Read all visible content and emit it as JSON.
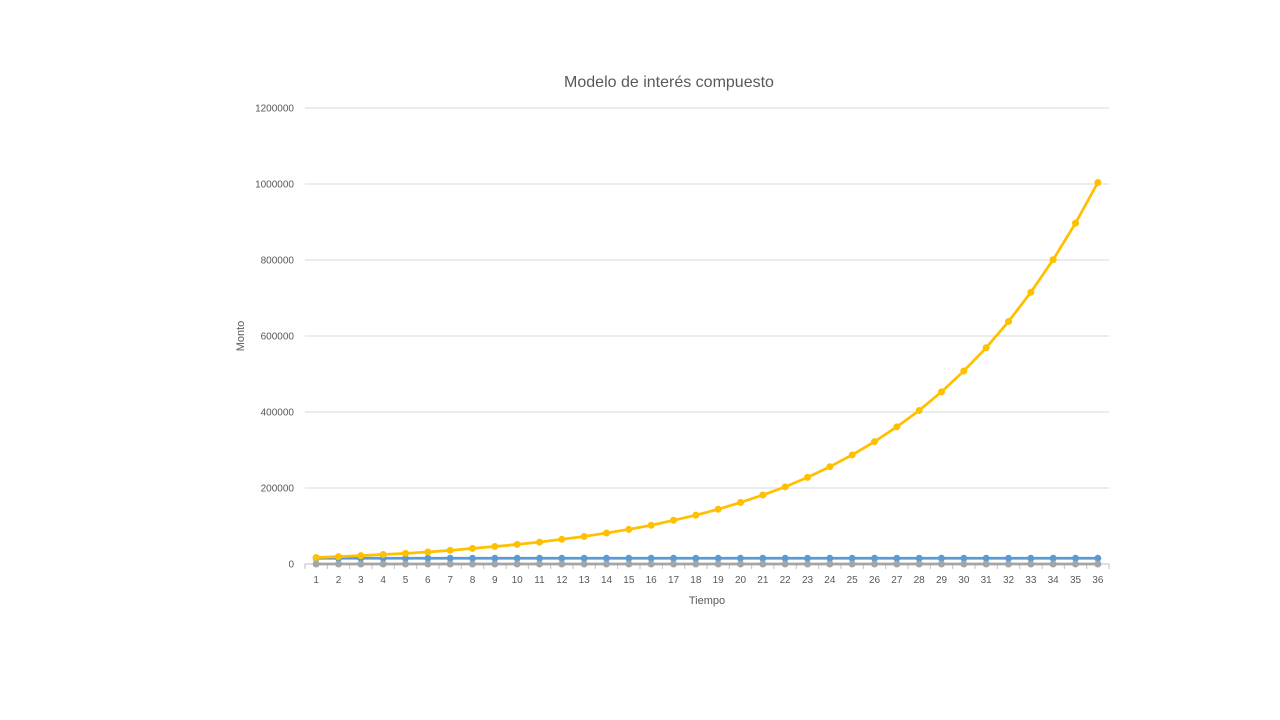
{
  "chart_data": {
    "type": "line",
    "title": "Modelo de interés compuesto",
    "xlabel": "Tiempo",
    "ylabel": "Monto",
    "ylim": [
      0,
      1200000
    ],
    "yticks": [
      0,
      200000,
      400000,
      600000,
      800000,
      1000000,
      1200000
    ],
    "ytick_labels": [
      "0",
      "200000",
      "400000",
      "600000",
      "800000",
      "1000000",
      "1200000"
    ],
    "grid": true,
    "legend": "none",
    "x": [
      "1",
      "2",
      "3",
      "4",
      "5",
      "6",
      "7",
      "8",
      "9",
      "10",
      "11",
      "12",
      "13",
      "14",
      "15",
      "16",
      "17",
      "18",
      "19",
      "20",
      "21",
      "22",
      "23",
      "24",
      "25",
      "26",
      "27",
      "28",
      "29",
      "30",
      "31",
      "32",
      "33",
      "34",
      "35",
      "36"
    ],
    "series": [
      {
        "color": "#5B9BD5",
        "values": [
          15000,
          15000,
          15000,
          15000,
          15000,
          15000,
          15000,
          15000,
          15000,
          15000,
          15000,
          15000,
          15000,
          15000,
          15000,
          15000,
          15000,
          15000,
          15000,
          15000,
          15000,
          15000,
          15000,
          15000,
          15000,
          15000,
          15000,
          15000,
          15000,
          15000,
          15000,
          15000,
          15000,
          15000,
          15000,
          15000
        ]
      },
      {
        "color": "#A5A5A5",
        "values": [
          0,
          0,
          0,
          0,
          0,
          0,
          0,
          0,
          0,
          0,
          0,
          0,
          0,
          0,
          0,
          0,
          0,
          0,
          0,
          0,
          0,
          0,
          0,
          0,
          0,
          0,
          0,
          0,
          0,
          0,
          0,
          0,
          0,
          0,
          0,
          0
        ]
      },
      {
        "color": "#FFC000",
        "values": [
          17000,
          19500,
          22000,
          25000,
          28000,
          31500,
          36000,
          41000,
          46000,
          51500,
          57500,
          65000,
          72500,
          81500,
          91000,
          102000,
          115000,
          128500,
          144000,
          162000,
          181500,
          203000,
          228000,
          256000,
          287000,
          322000,
          361000,
          404000,
          453000,
          508000,
          569000,
          638000,
          715000,
          801000,
          897000,
          1004000
        ]
      }
    ]
  }
}
